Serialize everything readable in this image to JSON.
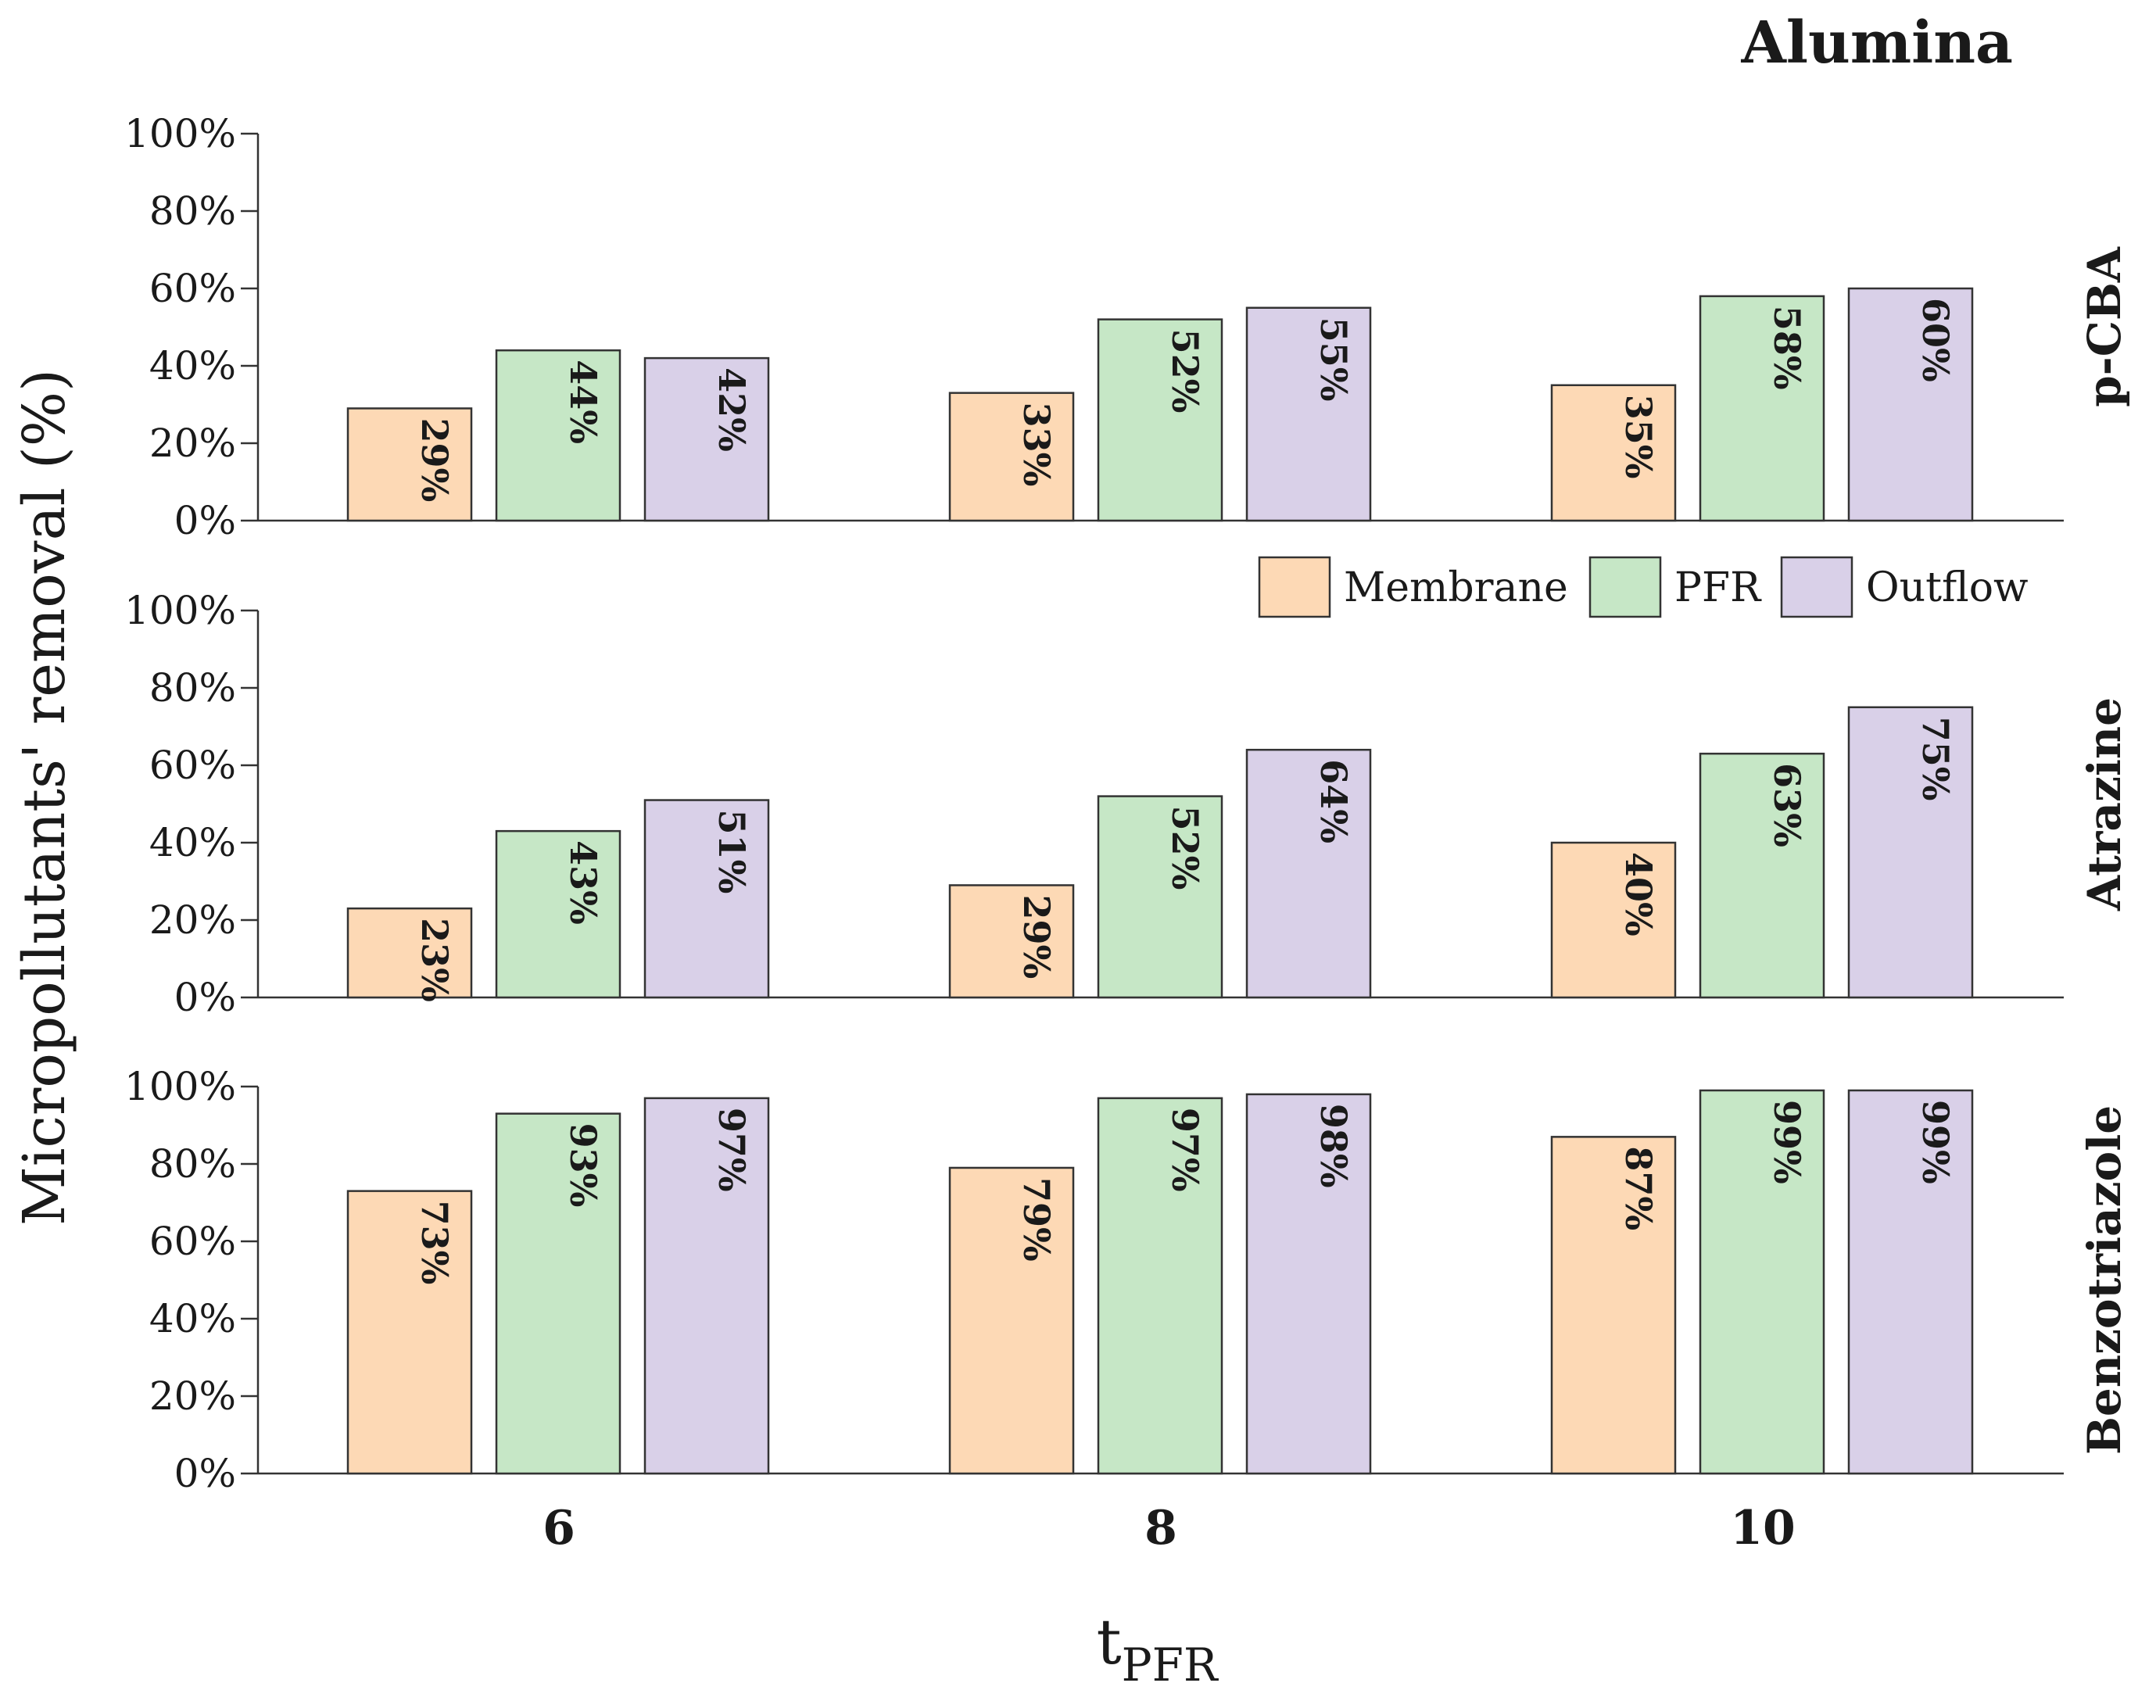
{
  "chart_data": {
    "type": "bar",
    "title": "Alumina",
    "xlabel": "t",
    "xlabel_subscript": "PFR",
    "ylabel": "Micropollutants' removal (%)",
    "categories": [
      "6",
      "8",
      "10"
    ],
    "ylim": [
      0,
      100
    ],
    "yticks": [
      "0%",
      "20%",
      "40%",
      "60%",
      "80%",
      "100%"
    ],
    "legend": {
      "position": "top-right of middle panel",
      "entries": [
        "Membrane",
        "PFR",
        "Outflow"
      ]
    },
    "colors": {
      "Membrane": "#fdd9b5",
      "PFR": "#c6e7c6",
      "Outflow": "#d9d0e8",
      "outline": "#333333"
    },
    "panels": [
      {
        "name": "p-CBA",
        "series": [
          {
            "name": "Membrane",
            "values": [
              29,
              33,
              35
            ],
            "labels": [
              "29%",
              "33%",
              "35%"
            ]
          },
          {
            "name": "PFR",
            "values": [
              44,
              52,
              58
            ],
            "labels": [
              "44%",
              "52%",
              "58%"
            ]
          },
          {
            "name": "Outflow",
            "values": [
              42,
              55,
              60
            ],
            "labels": [
              "42%",
              "55%",
              "60%"
            ]
          }
        ]
      },
      {
        "name": "Atrazine",
        "series": [
          {
            "name": "Membrane",
            "values": [
              23,
              29,
              40
            ],
            "labels": [
              "23%",
              "29%",
              "40%"
            ]
          },
          {
            "name": "PFR",
            "values": [
              43,
              52,
              63
            ],
            "labels": [
              "43%",
              "52%",
              "63%"
            ]
          },
          {
            "name": "Outflow",
            "values": [
              51,
              64,
              75
            ],
            "labels": [
              "51%",
              "64%",
              "75%"
            ]
          }
        ]
      },
      {
        "name": "Benzotriazole",
        "series": [
          {
            "name": "Membrane",
            "values": [
              73,
              79,
              87
            ],
            "labels": [
              "73%",
              "79%",
              "87%"
            ]
          },
          {
            "name": "PFR",
            "values": [
              93,
              97,
              99
            ],
            "labels": [
              "93%",
              "97%",
              "99%"
            ]
          },
          {
            "name": "Outflow",
            "values": [
              97,
              98,
              99
            ],
            "labels": [
              "97%",
              "98%",
              "99%"
            ]
          }
        ]
      }
    ]
  }
}
